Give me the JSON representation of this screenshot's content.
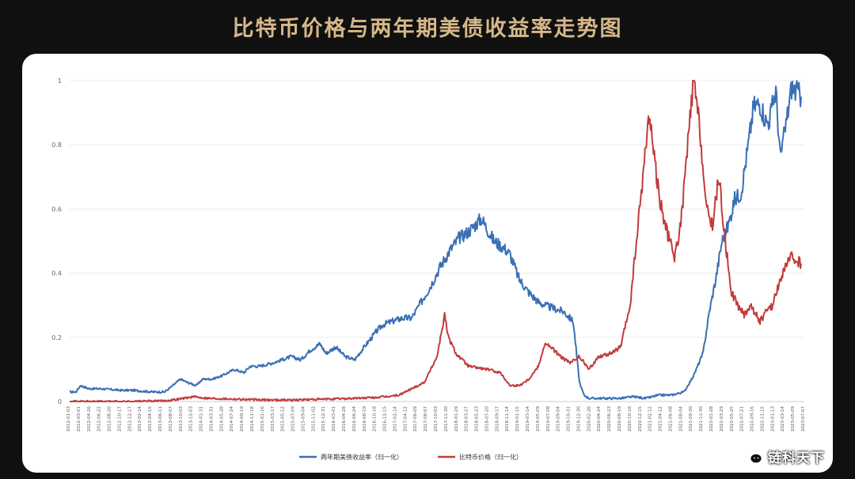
{
  "title": "比特币价格与两年期美债收益率走势图",
  "watermark": "链科天下",
  "colors": {
    "background": "#101010",
    "title": "#d6b889",
    "treasury": "#3a6fb5",
    "bitcoin": "#c23b3b"
  },
  "chart_data": {
    "type": "line",
    "title": "比特币价格与两年期美债收益率走势图",
    "xlabel": "",
    "ylabel": "",
    "ylim": [
      0,
      1
    ],
    "yticks": [
      "0",
      "0.2",
      "0.4",
      "0.6",
      "0.8",
      "1"
    ],
    "grid": true,
    "legend_position": "bottom-center",
    "xtick_labels": [
      "2012-01-03",
      "2012-03-01",
      "2012-04-26",
      "2012-06-22",
      "2012-08-20",
      "2012-10-17",
      "2012-12-17",
      "2013-02-14",
      "2013-04-15",
      "2013-06-11",
      "2013-08-07",
      "2013-10-03",
      "2013-12-03",
      "2014-01-31",
      "2014-03-31",
      "2014-05-28",
      "2014-07-24",
      "2014-09-19",
      "2014-11-18",
      "2015-01-16",
      "2015-03-17",
      "2015-05-12",
      "2015-07-09",
      "2015-09-04",
      "2015-11-02",
      "2015-12-31",
      "2016-03-01",
      "2016-04-28",
      "2016-06-24",
      "2016-08-19",
      "2016-10-18",
      "2016-12-15",
      "2017-02-14",
      "2017-04-12",
      "2017-06-09",
      "2017-08-07",
      "2017-10-03",
      "2017-11-30",
      "2018-01-29",
      "2018-03-27",
      "2018-05-23",
      "2018-07-20",
      "2018-09-17",
      "2018-11-14",
      "2019-01-15",
      "2019-03-14",
      "2019-05-09",
      "2019-07-08",
      "2019-09-04",
      "2019-10-31",
      "2019-12-30",
      "2020-02-26",
      "2020-04-24",
      "2020-06-23",
      "2020-08-19",
      "2020-10-16",
      "2020-12-15",
      "2021-02-12",
      "2021-04-12",
      "2021-06-08",
      "2021-08-04",
      "2021-09-30",
      "2021-11-30",
      "2022-01-28",
      "2022-03-29",
      "2022-05-25",
      "2022-07-21",
      "2022-09-16",
      "2022-11-15",
      "2023-01-13",
      "2023-03-14",
      "2023-05-09",
      "2023-07-07"
    ],
    "series": [
      {
        "name": "两年期美债收益率（归一化）",
        "color": "#3a6fb5",
        "x": [
          2012.0,
          2012.1,
          2012.17,
          2012.3,
          2012.5,
          2012.8,
          2013.0,
          2013.3,
          2013.5,
          2013.6,
          2013.75,
          2013.85,
          2014.0,
          2014.1,
          2014.25,
          2014.4,
          2014.6,
          2014.75,
          2014.85,
          2015.0,
          2015.2,
          2015.35,
          2015.5,
          2015.65,
          2015.8,
          2015.95,
          2016.05,
          2016.2,
          2016.35,
          2016.5,
          2016.65,
          2016.85,
          2016.95,
          2017.1,
          2017.25,
          2017.4,
          2017.55,
          2017.7,
          2017.85,
          2018.0,
          2018.15,
          2018.3,
          2018.5,
          2018.7,
          2018.85,
          2018.95,
          2019.1,
          2019.25,
          2019.4,
          2019.5,
          2019.65,
          2019.8,
          2019.95,
          2020.05,
          2020.12,
          2020.2,
          2020.3,
          2020.5,
          2020.7,
          2020.9,
          2021.1,
          2021.3,
          2021.5,
          2021.7,
          2021.85,
          2022.0,
          2022.1,
          2022.2,
          2022.3,
          2022.4,
          2022.5,
          2022.6,
          2022.7,
          2022.8,
          2022.9,
          2023.0,
          2023.05,
          2023.15,
          2023.22,
          2023.3,
          2023.4,
          2023.55
        ],
        "y": [
          0.03,
          0.03,
          0.05,
          0.04,
          0.04,
          0.035,
          0.035,
          0.03,
          0.03,
          0.045,
          0.07,
          0.06,
          0.05,
          0.07,
          0.07,
          0.08,
          0.1,
          0.09,
          0.11,
          0.11,
          0.12,
          0.13,
          0.14,
          0.13,
          0.16,
          0.18,
          0.15,
          0.17,
          0.14,
          0.13,
          0.17,
          0.22,
          0.24,
          0.25,
          0.26,
          0.26,
          0.31,
          0.36,
          0.42,
          0.47,
          0.51,
          0.53,
          0.57,
          0.5,
          0.48,
          0.46,
          0.38,
          0.34,
          0.31,
          0.3,
          0.29,
          0.28,
          0.25,
          0.06,
          0.02,
          0.01,
          0.01,
          0.01,
          0.01,
          0.015,
          0.01,
          0.02,
          0.02,
          0.03,
          0.08,
          0.15,
          0.28,
          0.38,
          0.5,
          0.55,
          0.63,
          0.65,
          0.78,
          0.92,
          0.93,
          0.87,
          0.88,
          0.97,
          0.76,
          0.85,
          0.98,
          0.95
        ]
      },
      {
        "name": "比特币价格（归一化）",
        "color": "#c23b3b",
        "x": [
          2012.0,
          2012.5,
          2013.0,
          2013.5,
          2013.8,
          2013.95,
          2014.2,
          2014.6,
          2015.0,
          2015.5,
          2016.0,
          2016.5,
          2016.8,
          2017.0,
          2017.2,
          2017.4,
          2017.6,
          2017.8,
          2017.92,
          2017.98,
          2018.1,
          2018.3,
          2018.6,
          2018.8,
          2018.95,
          2019.1,
          2019.25,
          2019.4,
          2019.5,
          2019.6,
          2019.75,
          2019.9,
          2020.05,
          2020.2,
          2020.35,
          2020.55,
          2020.7,
          2020.85,
          2020.95,
          2021.05,
          2021.15,
          2021.3,
          2021.4,
          2021.55,
          2021.65,
          2021.75,
          2021.85,
          2021.95,
          2022.05,
          2022.15,
          2022.25,
          2022.35,
          2022.45,
          2022.55,
          2022.65,
          2022.75,
          2022.9,
          2023.0,
          2023.1,
          2023.2,
          2023.3,
          2023.4,
          2023.55
        ],
        "y": [
          0.0,
          0.0,
          0.0,
          0.002,
          0.01,
          0.015,
          0.01,
          0.008,
          0.005,
          0.005,
          0.007,
          0.01,
          0.012,
          0.015,
          0.02,
          0.04,
          0.06,
          0.14,
          0.27,
          0.2,
          0.15,
          0.11,
          0.1,
          0.09,
          0.05,
          0.05,
          0.07,
          0.11,
          0.18,
          0.17,
          0.14,
          0.12,
          0.14,
          0.1,
          0.14,
          0.15,
          0.17,
          0.3,
          0.5,
          0.7,
          0.9,
          0.65,
          0.55,
          0.45,
          0.55,
          0.78,
          1.0,
          0.85,
          0.6,
          0.55,
          0.7,
          0.5,
          0.34,
          0.3,
          0.27,
          0.3,
          0.25,
          0.28,
          0.3,
          0.37,
          0.42,
          0.45,
          0.43
        ]
      }
    ]
  }
}
